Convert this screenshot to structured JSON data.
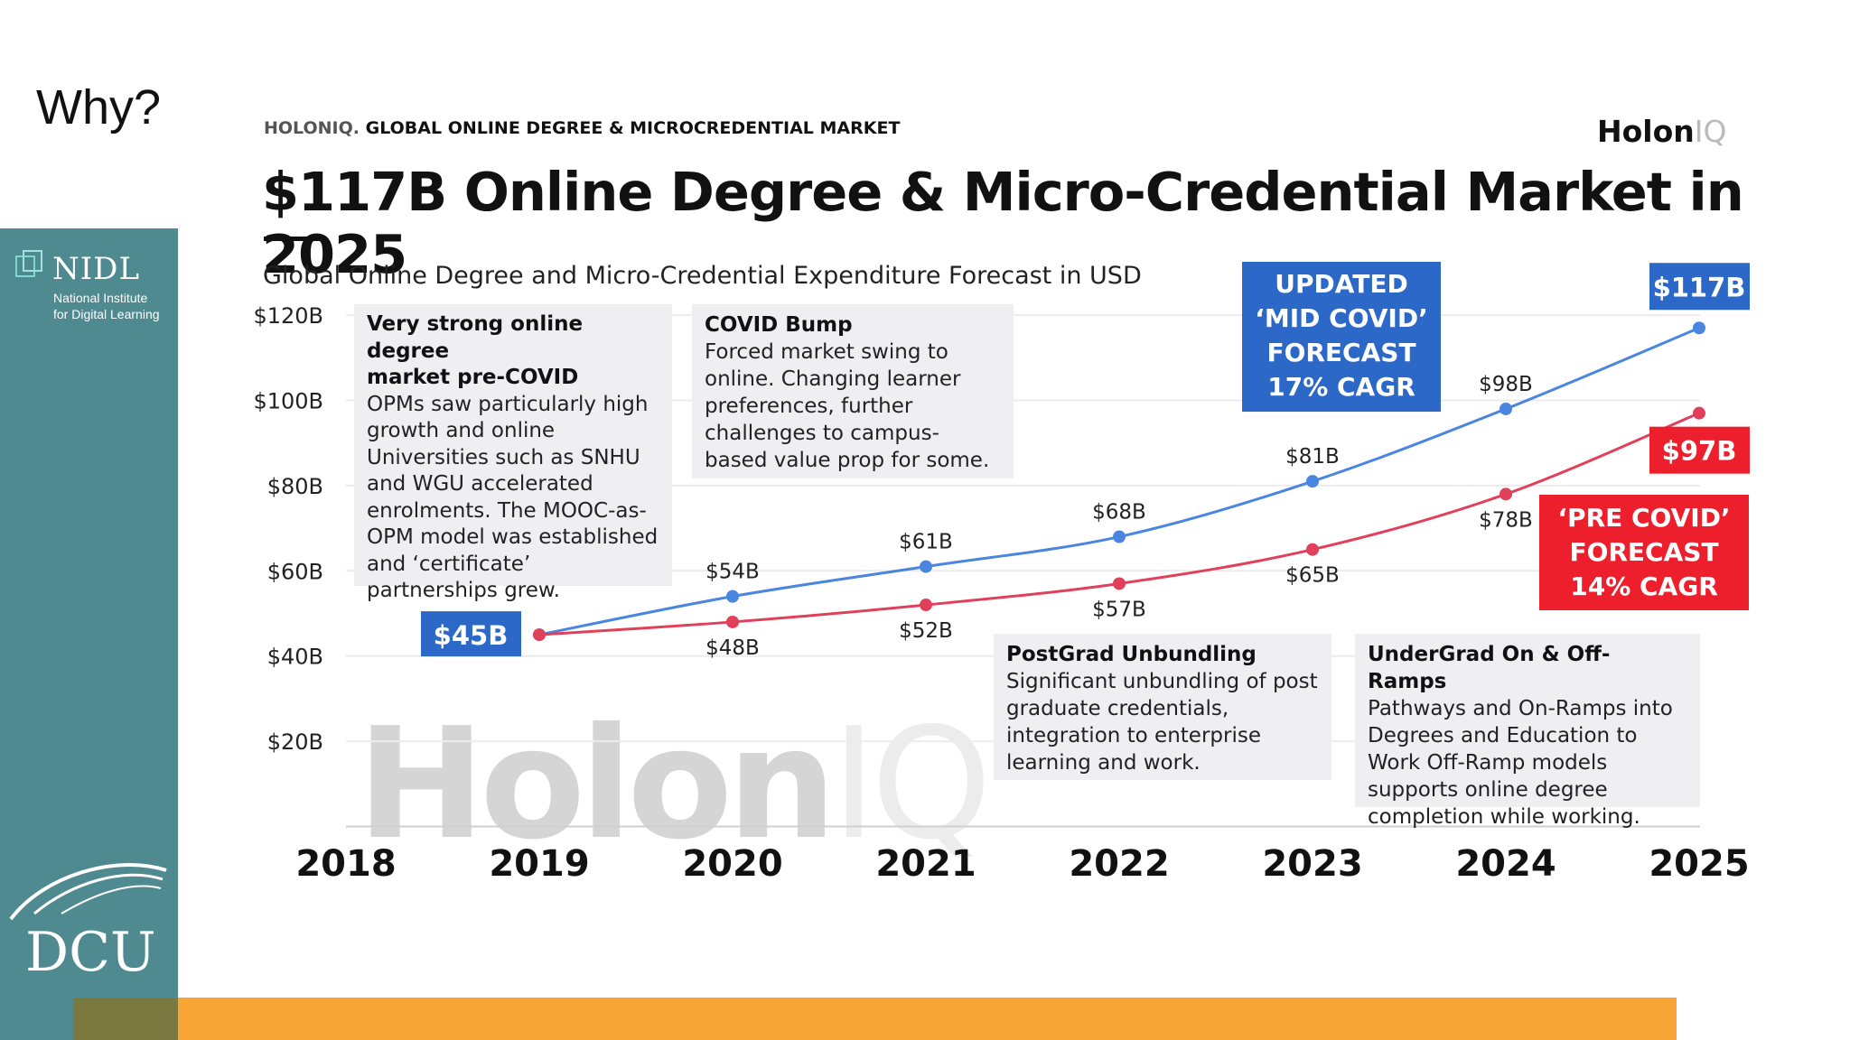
{
  "slide": {
    "title": "Why?"
  },
  "sidebar": {
    "org_name": "NIDL",
    "org_tagline_1": "National Institute",
    "org_tagline_2": "for Digital Learning",
    "university": "DCU"
  },
  "chart_header": {
    "brand_prefix": "HOLONIQ.",
    "super_title": "GLOBAL ONLINE DEGREE & MICROCREDENTIAL MARKET",
    "logo_main": "Holon",
    "logo_suffix": "IQ",
    "watermark_main": "Holon",
    "watermark_suffix": "IQ"
  },
  "annotations": {
    "pre_covid_heading_1": "Very strong online degree",
    "pre_covid_heading_2": "market pre-COVID",
    "pre_covid_lines": [
      "OPMs saw particularly high",
      "growth and online",
      "Universities such as SNHU",
      "and WGU accelerated",
      "enrolments. The MOOC-as-",
      "OPM model was established",
      "and ‘certificate’",
      "partnerships grew."
    ],
    "covid_bump_heading": "COVID Bump",
    "covid_bump_lines": [
      "Forced market swing to",
      "online. Changing learner",
      "preferences, further",
      "challenges to campus-",
      "based value prop for some."
    ],
    "postgrad_heading": "PostGrad Unbundling",
    "postgrad_lines": [
      "Significant unbundling of post",
      "graduate credentials,",
      "integration to enterprise",
      "learning and work."
    ],
    "undergrad_heading": "UnderGrad On & Off-Ramps",
    "undergrad_lines": [
      "Pathways and On-Ramps into",
      "Degrees and Education to",
      "Work Off-Ramp models",
      "supports online degree",
      "completion while working."
    ],
    "updated_forecast_lines": [
      "UPDATED",
      "‘MID COVID’",
      "FORECAST",
      "17% CAGR"
    ],
    "pre_forecast_lines": [
      "‘PRE COVID’",
      "FORECAST",
      "14% CAGR"
    ]
  },
  "colors": {
    "updated_series": "#4a86e0",
    "pre_series": "#e0405a",
    "badge_blue": "#2c68c8",
    "badge_red": "#ee1f2c",
    "sidebar": "#4e8a90",
    "footer_bar": "#f7a535"
  },
  "chart_data": {
    "type": "line",
    "title": "$117B Online Degree & Micro-Credential Market in 2025",
    "subtitle": "Global Online Degree and Micro-Credential Expenditure Forecast in USD",
    "x_ticks": [
      "2018",
      "2019",
      "2020",
      "2021",
      "2022",
      "2023",
      "2024",
      "2025"
    ],
    "y_ticks": [
      "$20B",
      "$40B",
      "$60B",
      "$80B",
      "$100B",
      "$120B"
    ],
    "y_tick_values": [
      20,
      40,
      60,
      80,
      100,
      120
    ],
    "ylim": [
      0,
      125
    ],
    "grid": true,
    "series": [
      {
        "name": "UPDATED ‘MID COVID’ FORECAST 17% CAGR",
        "color": "#4a86e0",
        "x": [
          2019,
          2020,
          2021,
          2022,
          2023,
          2024,
          2025
        ],
        "values": [
          45,
          54,
          61,
          68,
          81,
          98,
          117
        ],
        "labels": [
          "$45B",
          "$54B",
          "$61B",
          "$68B",
          "$81B",
          "$98B",
          "$117B"
        ]
      },
      {
        "name": "‘PRE COVID’ FORECAST 14% CAGR",
        "color": "#e0405a",
        "x": [
          2019,
          2020,
          2021,
          2022,
          2023,
          2024,
          2025
        ],
        "values": [
          45,
          48,
          52,
          57,
          65,
          78,
          97
        ],
        "labels": [
          "$45B",
          "$48B",
          "$52B",
          "$57B",
          "$65B",
          "$78B",
          "$97B"
        ]
      }
    ]
  }
}
